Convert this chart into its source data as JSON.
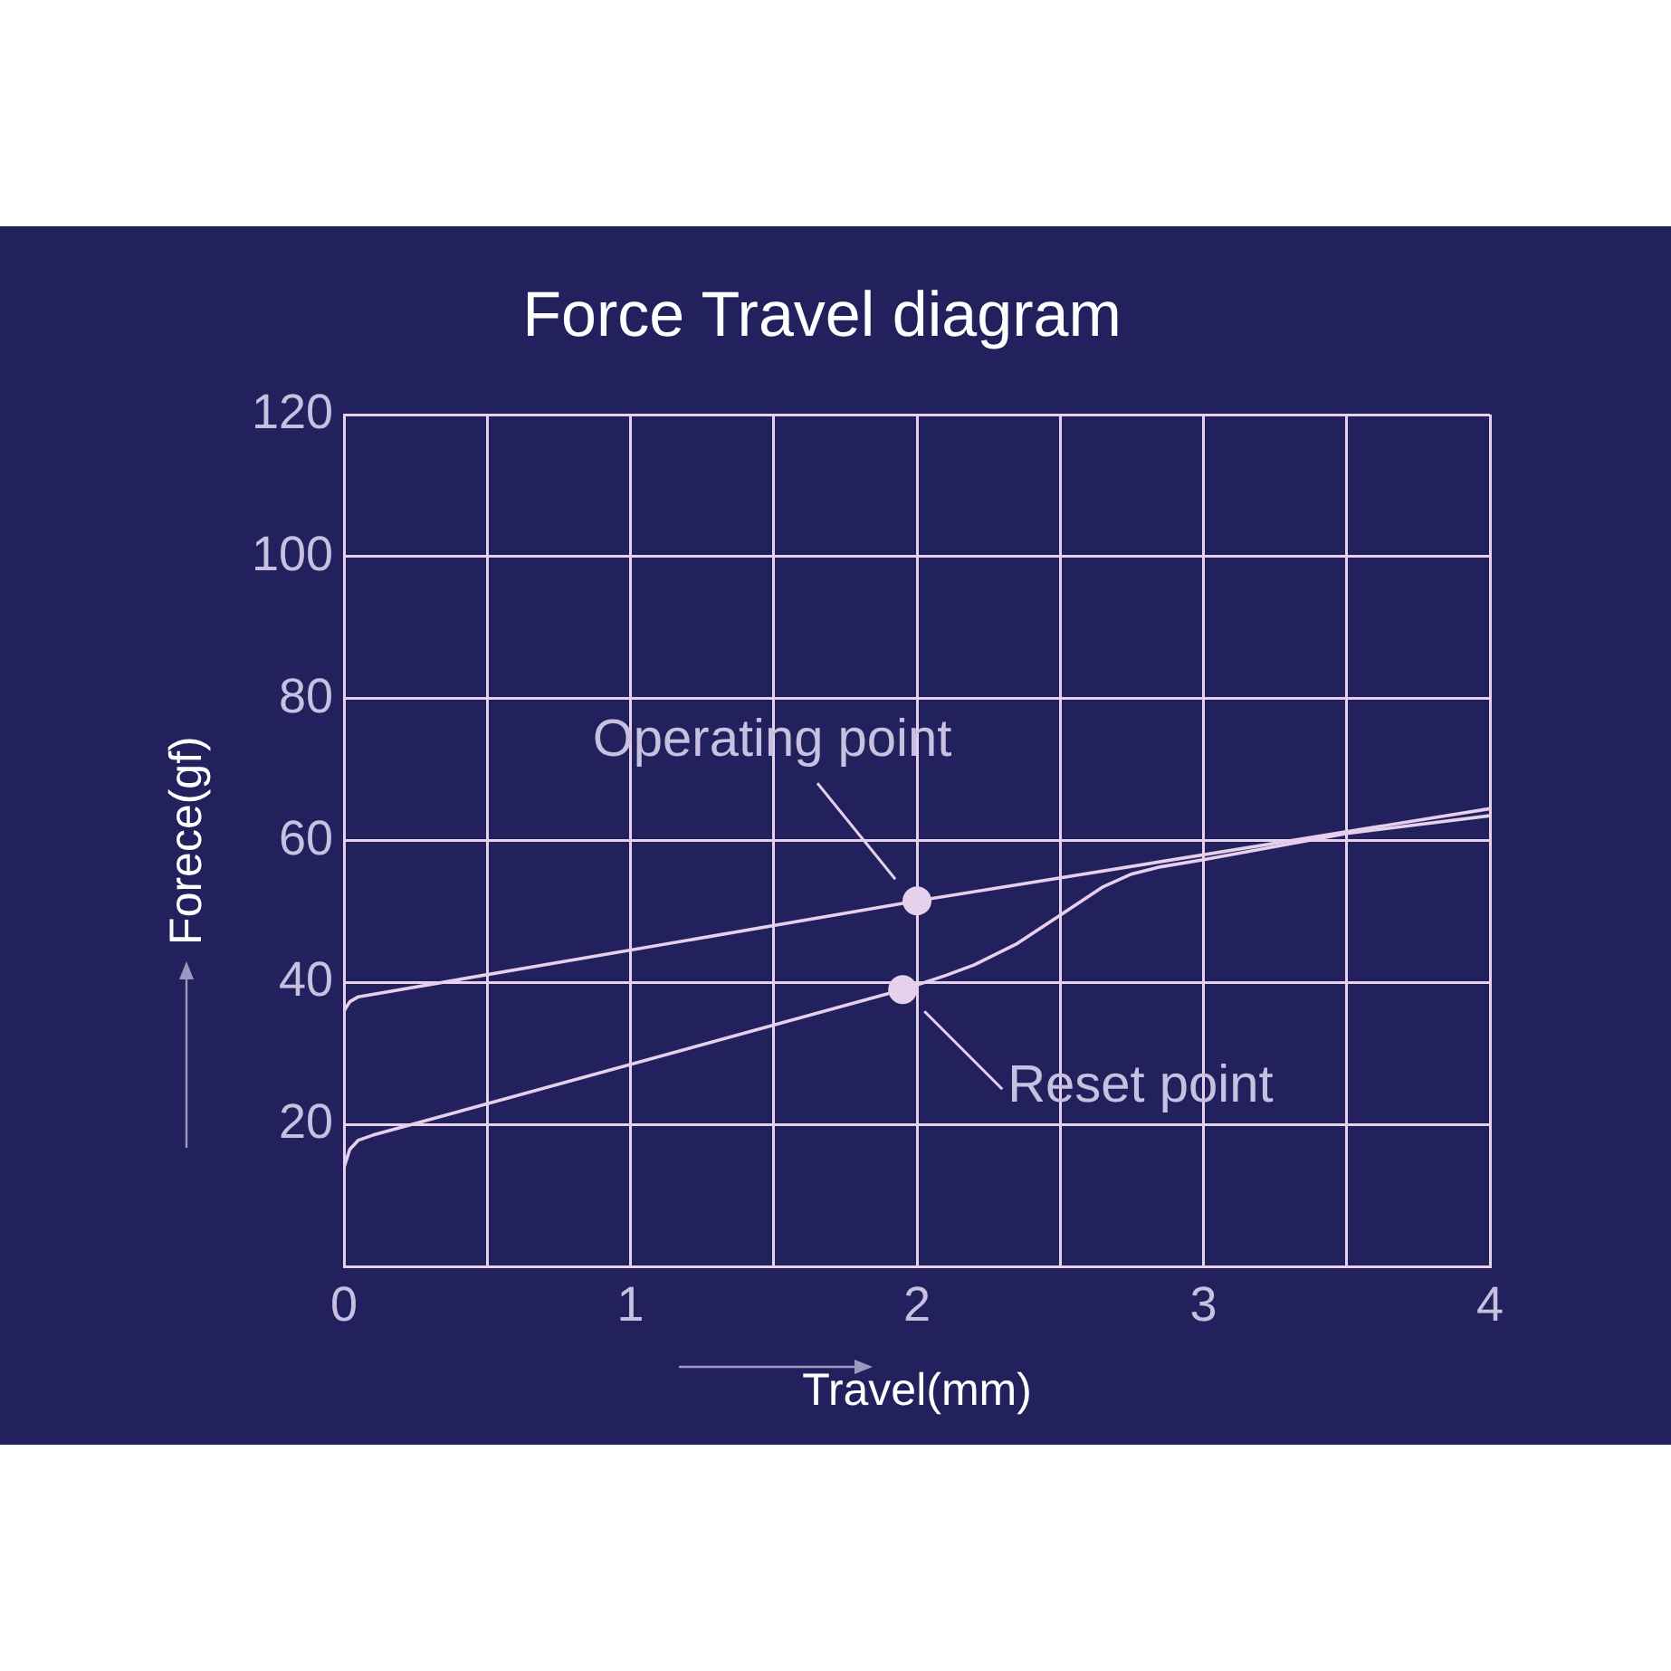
{
  "chart_data": {
    "type": "line",
    "title": "Force Travel diagram",
    "xlabel": "Travel(mm)",
    "ylabel": "Forece(gf)",
    "xlim": [
      0,
      4
    ],
    "xticks": [
      0,
      {
        "value": 0.5,
        "label": null
      },
      1,
      {
        "value": 1.5,
        "label": null
      },
      2,
      {
        "value": 2.5,
        "label": null
      },
      3,
      {
        "value": 3.5,
        "label": null
      },
      4
    ],
    "ylim": [
      0,
      120
    ],
    "yticks": [
      {
        "value": 0,
        "label": null
      },
      20,
      40,
      60,
      80,
      100,
      120
    ],
    "grid": true,
    "legend": false,
    "marker": "none",
    "line_style": "solid",
    "series": [
      {
        "color": "#e6d0ec",
        "x": [
          0,
          0.02,
          0.05,
          2,
          4
        ],
        "values": [
          36,
          37.3,
          38,
          51.5,
          64.5
        ]
      },
      {
        "color": "#e6d0ec",
        "x": [
          0,
          0.02,
          0.05,
          0.1,
          1.95,
          2.1,
          2.2,
          2.35,
          2.5,
          2.65,
          2.75,
          2.85,
          3,
          3.5,
          4
        ],
        "values": [
          14,
          16.5,
          17.8,
          18.5,
          39,
          41,
          42.5,
          45.5,
          49.5,
          53.5,
          55.3,
          56.3,
          57.3,
          61,
          63.5
        ]
      }
    ],
    "annotations": [
      {
        "text": "Operating point",
        "x": 2,
        "y": 51.5
      },
      {
        "text": "Reset point",
        "x": 1.95,
        "y": 39
      }
    ]
  }
}
